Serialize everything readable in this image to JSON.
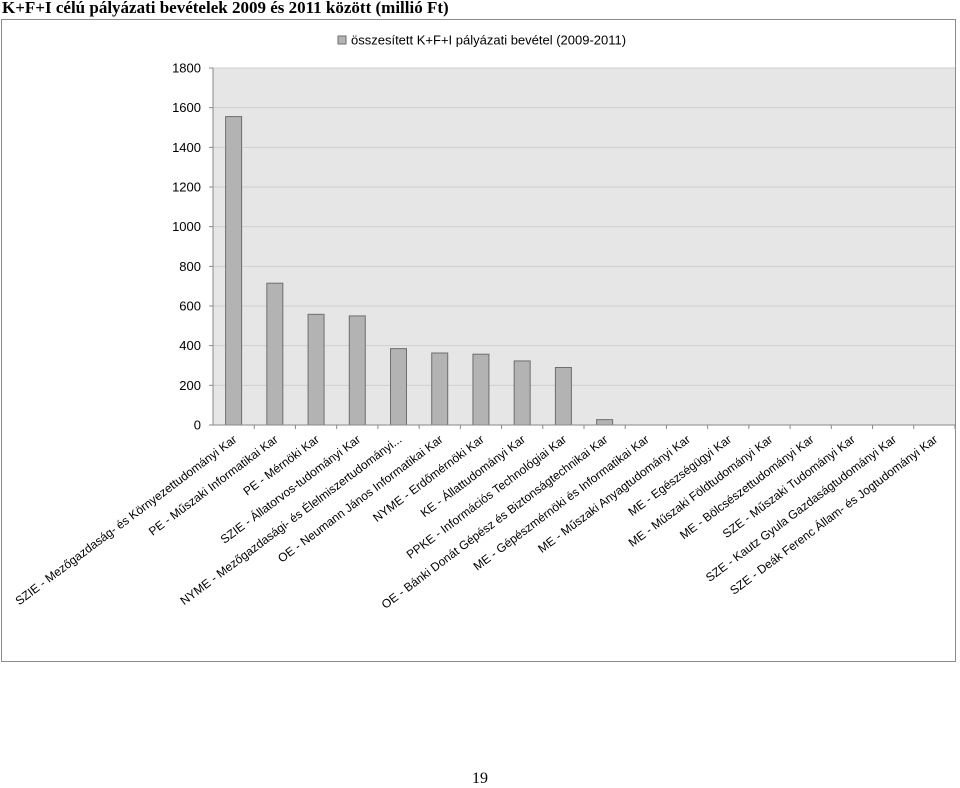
{
  "document": {
    "title": "K+F+I célú pályázati bevételek 2009 és 2011 között (millió Ft)",
    "page_number": "19"
  },
  "colors": {
    "bar_fill": "#b3b3b3",
    "bar_stroke": "#6e6e6e",
    "plot_background": "#e6e6e6",
    "gridline": "#cfcfcf"
  },
  "chart_data": {
    "type": "bar",
    "title": "",
    "xlabel": "",
    "ylabel": "",
    "ylim": [
      0,
      1800
    ],
    "yticks": [
      0,
      200,
      400,
      600,
      800,
      1000,
      1200,
      1400,
      1600,
      1800
    ],
    "grid": true,
    "legend_position": "top",
    "categories": [
      "SZIE - Mezőgazdaság- és Környezettudományi Kar",
      "PE - Műszaki Informatikai Kar",
      "PE - Mérnöki Kar",
      "SZIE - Állatorvos-tudományi Kar",
      "NYME - Mezőgazdasági- és Élelmiszertudományi...",
      "OE - Neumann János Informatikai Kar",
      "NYME - Erdőmérnöki Kar",
      "KE - Állattudományi Kar",
      "PPKE - Információs Technológiai Kar",
      "OE - Bánki Donát Gépész és Biztonságtechnikai Kar",
      "ME - Gépészmérnöki és Informatikai Kar",
      "ME - Műszaki Anyagtudományi Kar",
      "ME - Egészségügyi Kar",
      "ME - Műszaki Földtudományi Kar",
      "ME - Bölcsészettudományi Kar",
      "SZE - Műszaki Tudományi Kar",
      "SZE - Kautz Gyula Gazdaságtudományi Kar",
      "SZE - Deák Ferenc Állam- és Jogtudományi Kar"
    ],
    "series": [
      {
        "name": "összesített K+F+I pályázati bevétel (2009-2011)",
        "values": [
          1555,
          715,
          558,
          550,
          385,
          363,
          357,
          323,
          290,
          27,
          0,
          0,
          0,
          0,
          0,
          0,
          0,
          0
        ]
      }
    ]
  }
}
